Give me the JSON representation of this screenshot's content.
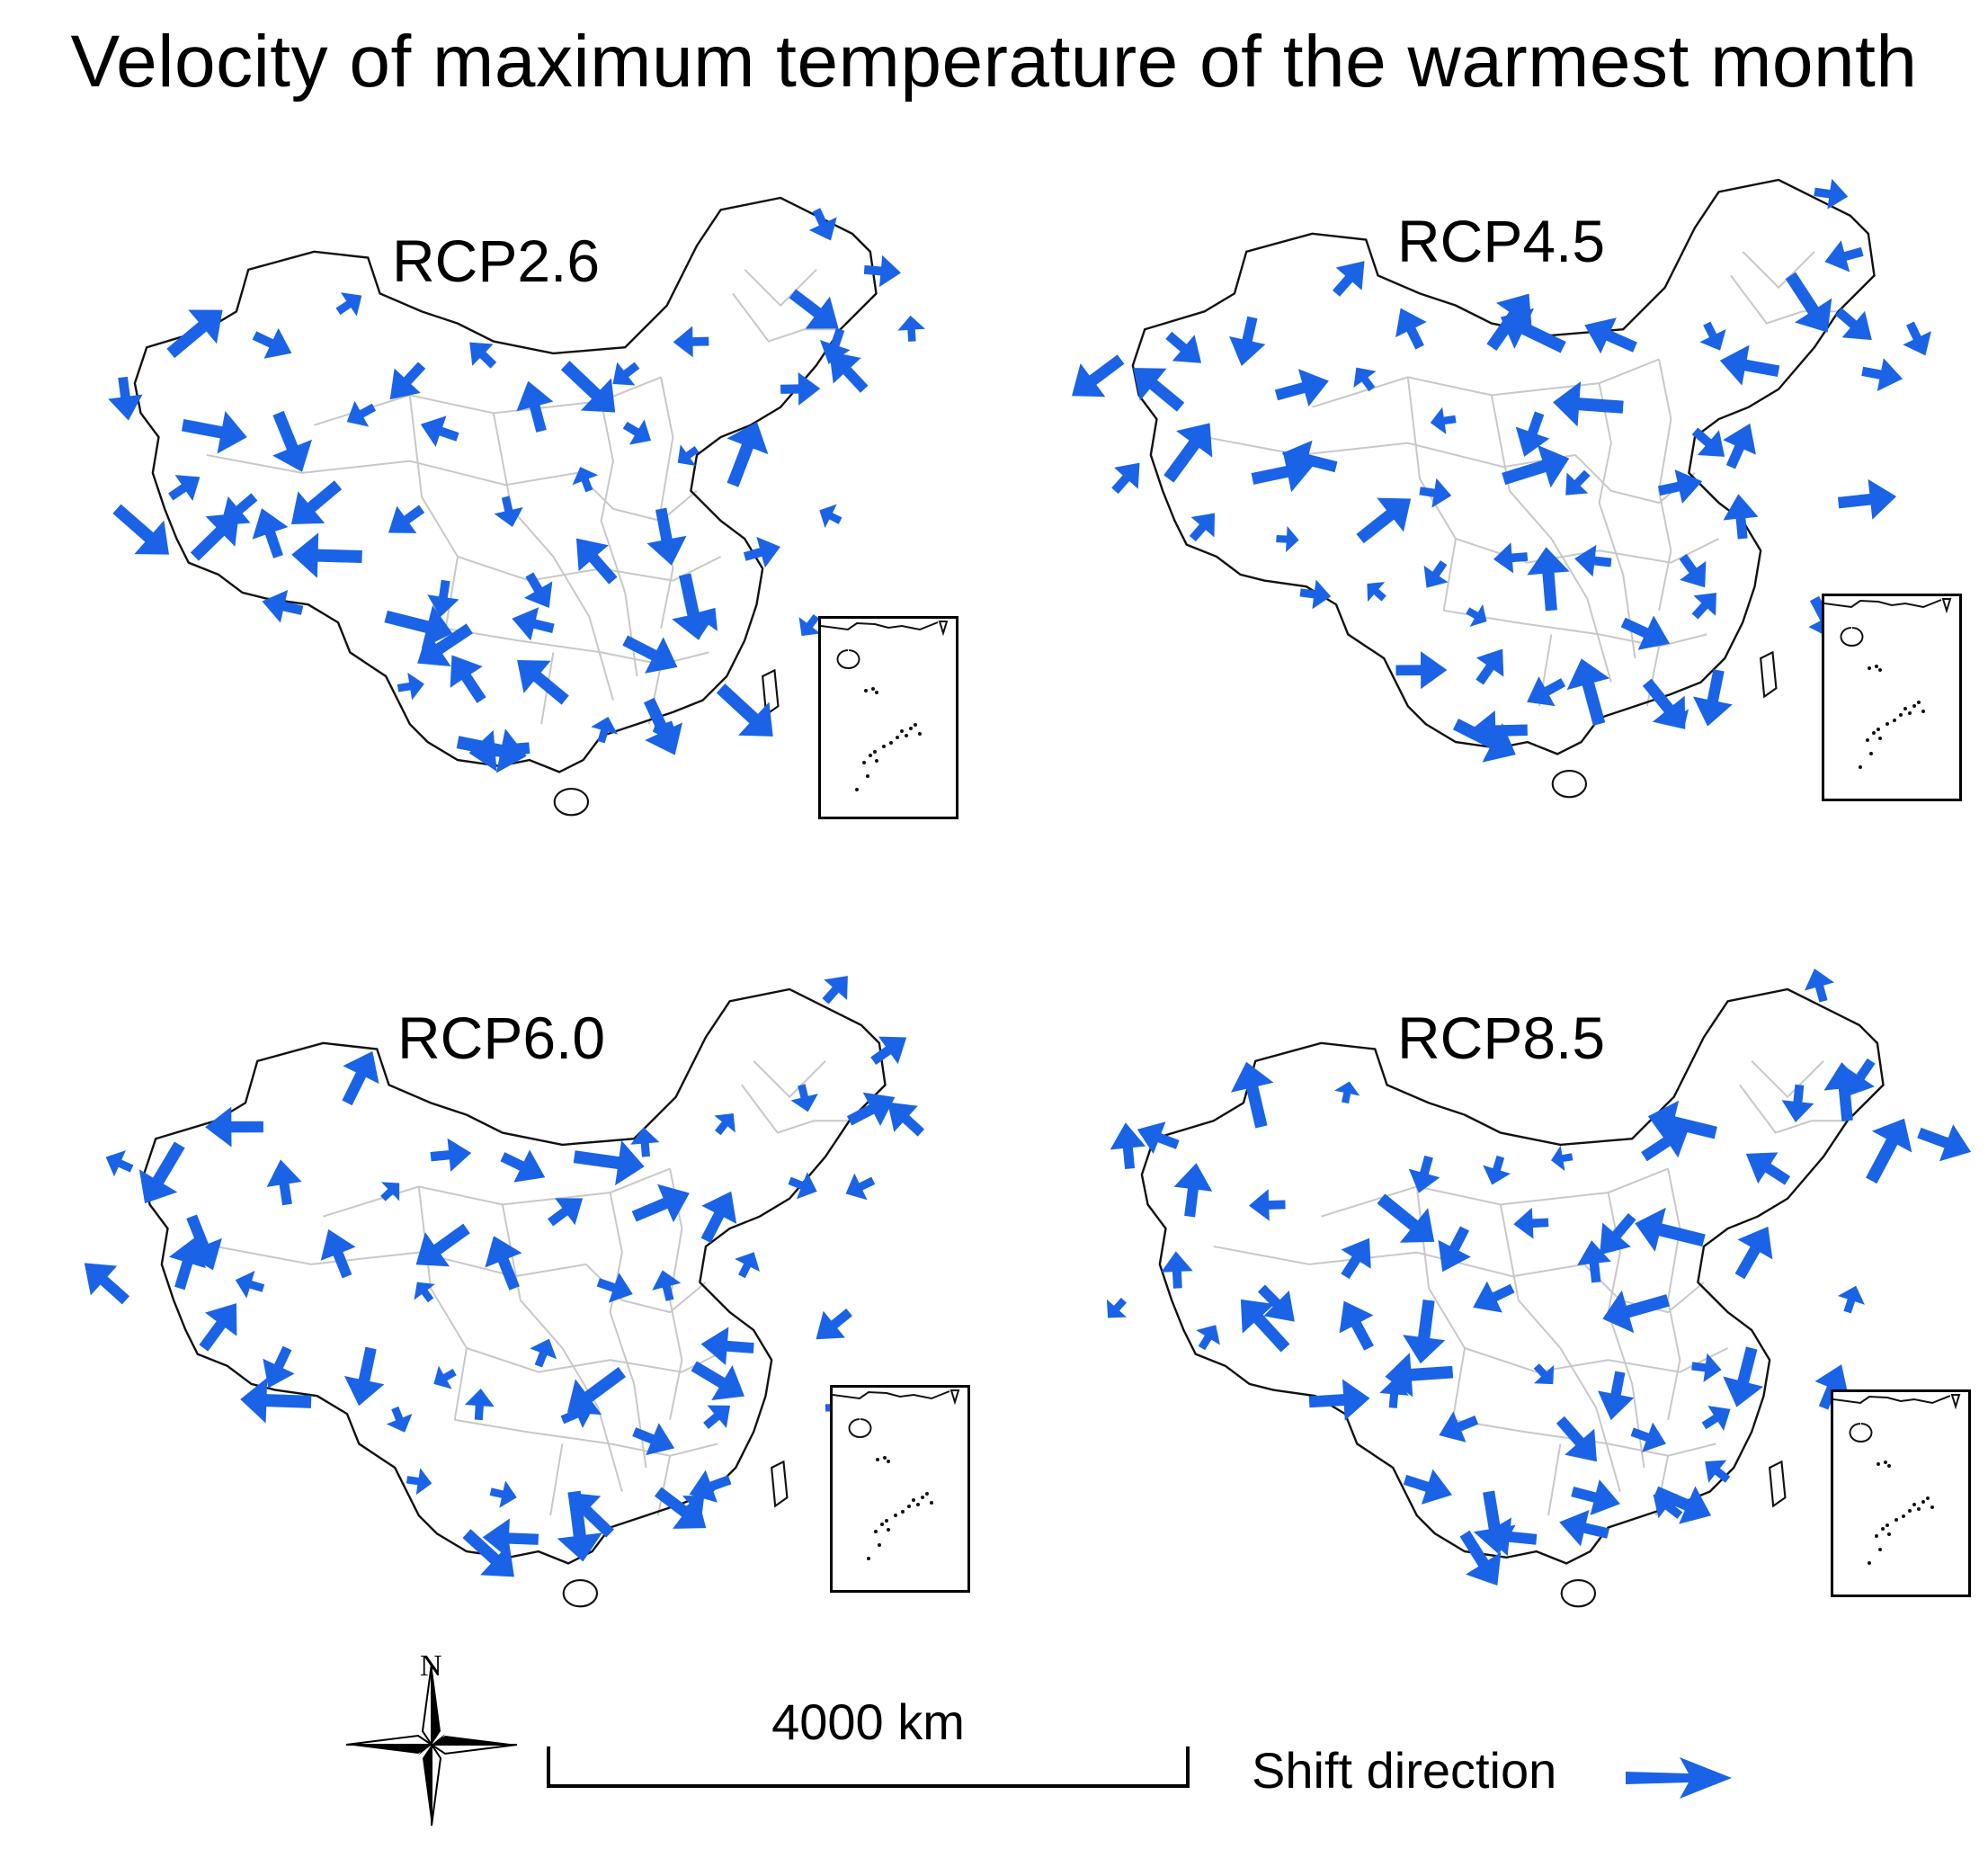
{
  "title": "Velocity of maximum temperature of the warmest month",
  "arrow_color": "#1a63e6",
  "panels": [
    {
      "label": "RCP2.6"
    },
    {
      "label": "RCP4.5"
    },
    {
      "label": "RCP6.0"
    },
    {
      "label": "RCP8.5"
    }
  ],
  "north_label": "N",
  "scale_label": "4000 km",
  "legend_label": "Shift direction",
  "icons": {
    "north_arrow": "compass-rose-icon",
    "legend_arrow": "shift-arrow-icon"
  }
}
